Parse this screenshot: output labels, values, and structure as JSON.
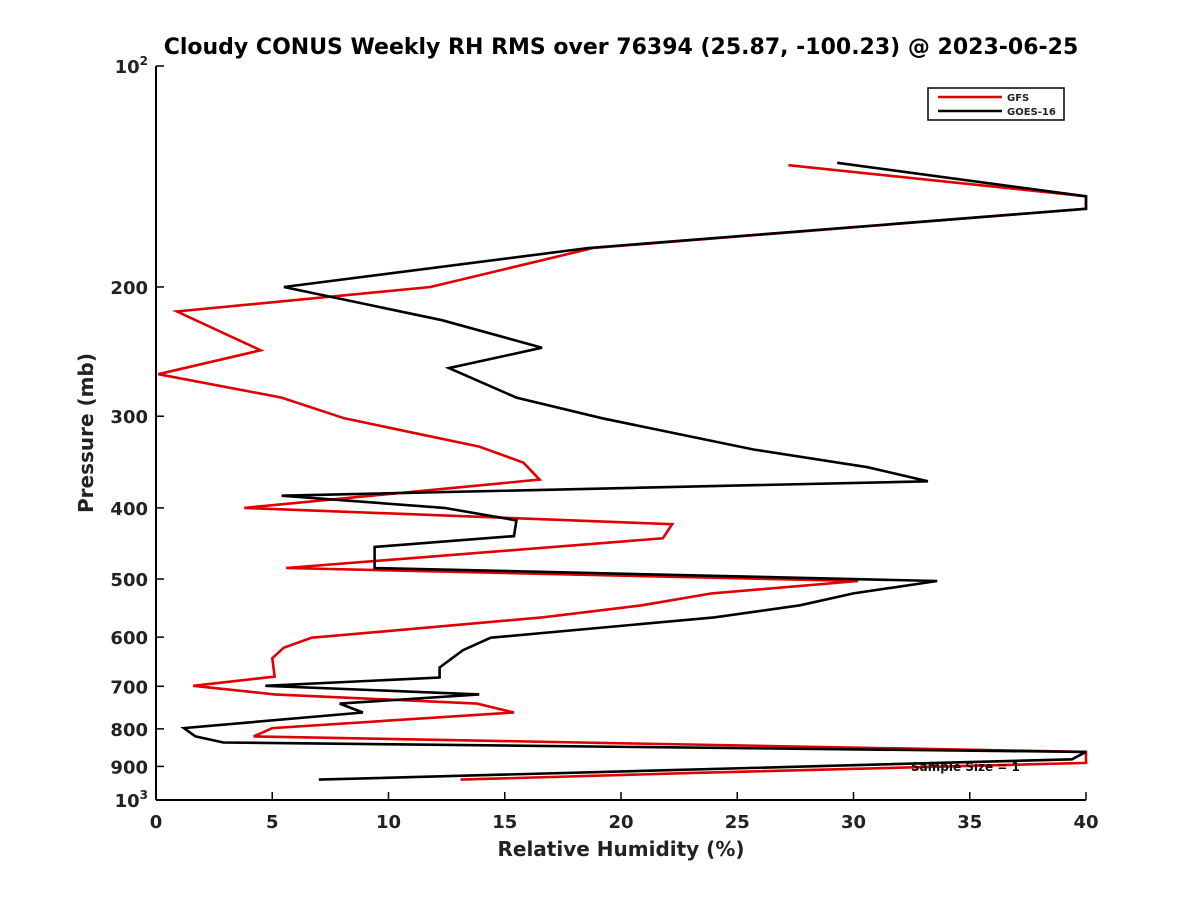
{
  "chart_data": {
    "type": "line",
    "title": "Cloudy CONUS Weekly RH RMS over 76394 (25.87, -100.23) @ 2023-06-25",
    "xlabel": "Relative Humidity (%)",
    "ylabel": "Pressure (mb)",
    "xlim": [
      0,
      40
    ],
    "ylim": [
      100,
      1000
    ],
    "y_scale": "log",
    "y_reversed": true,
    "x_ticks": [
      "0",
      "5",
      "10",
      "15",
      "20",
      "25",
      "30",
      "35",
      "40"
    ],
    "y_ticks": [
      {
        "value": 100,
        "base": "10",
        "exp": "2"
      },
      {
        "value": 200,
        "label": "200"
      },
      {
        "value": 300,
        "label": "300"
      },
      {
        "value": 400,
        "label": "400"
      },
      {
        "value": 500,
        "label": "500"
      },
      {
        "value": 600,
        "label": "600"
      },
      {
        "value": 700,
        "label": "700"
      },
      {
        "value": 800,
        "label": "800"
      },
      {
        "value": 900,
        "label": "900"
      },
      {
        "value": 1000,
        "base": "10",
        "exp": "3"
      }
    ],
    "grid": false,
    "legend_position": "top-right",
    "annotation": "Sample Size = 1",
    "series": [
      {
        "name": "GFS",
        "color": "#e00000",
        "x": [
          27.2,
          40.0,
          40.0,
          18.8,
          11.8,
          0.9,
          4.5,
          0.1,
          5.4,
          8.1,
          13.9,
          15.8,
          16.5,
          3.8,
          22.2,
          21.8,
          5.6,
          30.2,
          23.9,
          20.9,
          16.6,
          10.7,
          6.7,
          5.5,
          5.0,
          5.1,
          1.6,
          5.1,
          13.8,
          15.4,
          5.0,
          4.2,
          40.0,
          40.0,
          22.9,
          13.1
        ],
        "y": [
          136.5,
          150.5,
          156.5,
          177,
          200,
          216,
          244,
          263,
          283,
          302,
          330,
          347,
          366,
          400,
          421,
          440,
          483,
          503,
          523,
          543,
          564,
          586,
          601,
          620,
          641,
          679,
          699,
          718,
          739,
          760,
          798,
          819,
          860,
          890,
          919,
          938
        ]
      },
      {
        "name": "GOES-16",
        "color": "#000000",
        "x": [
          29.3,
          40.0,
          40.0,
          18.6,
          5.5,
          12.3,
          16.6,
          12.6,
          15.5,
          19.2,
          25.7,
          30.6,
          33.2,
          5.4,
          12.4,
          15.5,
          15.4,
          9.4,
          9.4,
          33.6,
          30.0,
          27.7,
          24.0,
          14.4,
          13.2,
          12.2,
          12.2,
          4.7,
          13.9,
          7.9,
          8.9,
          1.2,
          1.7,
          2.9,
          40.0,
          39.4,
          7.0
        ],
        "y": [
          135.5,
          150.5,
          156.5,
          177,
          200,
          222,
          242,
          258,
          283,
          302,
          333,
          352,
          368,
          385,
          400,
          416,
          437,
          452,
          483,
          503,
          523,
          543,
          564,
          601,
          625,
          660,
          681,
          699,
          718,
          739,
          760,
          798,
          819,
          835,
          860,
          880,
          938
        ]
      }
    ]
  }
}
